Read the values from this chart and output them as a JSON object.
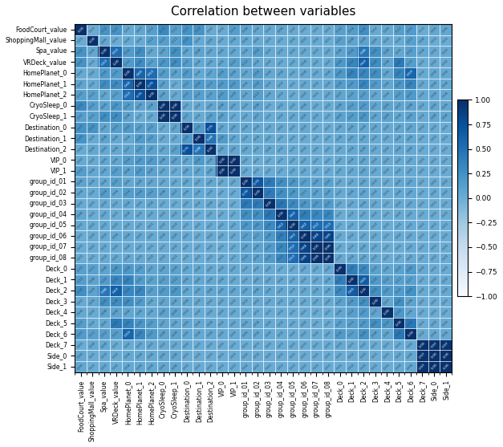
{
  "title": "Correlation between variables",
  "variables": [
    "FoodCourt_value",
    "ShoppingMall_value",
    "Spa_value",
    "VRDeck_value",
    "HomePlanet_0",
    "HomePlanet_1",
    "HomePlanet_2",
    "CryoSleep_0",
    "CryoSleep_1",
    "Destination_0",
    "Destination_1",
    "Destination_2",
    "VIP_0",
    "VIP_1",
    "group_id_01",
    "group_id_02",
    "group_id_03",
    "group_id_04",
    "group_id_05",
    "group_id_06",
    "group_id_07",
    "group_id_08",
    "Deck_0",
    "Deck_1",
    "Deck_2",
    "Deck_3",
    "Deck_4",
    "Deck_5",
    "Deck_6",
    "Deck_7",
    "Side_0",
    "Side_1"
  ],
  "corr_matrix": [
    [
      1.0,
      0.01,
      0.22,
      0.22,
      0.03,
      0.07,
      0.12,
      0.31,
      0.12,
      0.23,
      0.23,
      0.02,
      0.02,
      0.13,
      0.08,
      0.04,
      0.02,
      0.06,
      0.02,
      0.01,
      0.01,
      0.01,
      0.12,
      0.14,
      0.26,
      0.02,
      0.04,
      0.13,
      0.15,
      0.01,
      0.05,
      0.05
    ],
    [
      0.01,
      1.0,
      0.05,
      0.01,
      0.02,
      0.02,
      0.11,
      0.13,
      0.11,
      0.23,
      0.03,
      0.05,
      0.02,
      0.04,
      0.04,
      0.02,
      0.01,
      0.01,
      0.02,
      0.03,
      0.02,
      0.01,
      0.11,
      0.08,
      0.09,
      0.05,
      0.02,
      0.02,
      0.11,
      0.04,
      0.01,
      0.01
    ],
    [
      0.22,
      0.05,
      1.0,
      0.53,
      0.16,
      0.27,
      0.05,
      0.09,
      0.25,
      0.06,
      0.08,
      0.05,
      0.05,
      0.05,
      0.04,
      0.14,
      0.03,
      0.03,
      0.03,
      0.03,
      0.02,
      0.02,
      0.08,
      0.16,
      0.46,
      0.25,
      0.08,
      0.05,
      0.12,
      0.04,
      0.03,
      0.03
    ],
    [
      0.22,
      0.01,
      0.53,
      1.0,
      0.15,
      0.28,
      0.11,
      0.19,
      0.26,
      0.13,
      0.04,
      0.04,
      0.05,
      0.12,
      0.12,
      0.04,
      0.02,
      0.01,
      0.02,
      0.04,
      0.02,
      0.02,
      0.18,
      0.33,
      0.63,
      0.28,
      0.08,
      0.42,
      0.13,
      0.01,
      0.02,
      0.02
    ],
    [
      0.03,
      0.02,
      0.16,
      0.15,
      1.0,
      0.6,
      0.53,
      0.14,
      0.08,
      0.15,
      0.04,
      0.07,
      0.14,
      0.08,
      0.05,
      0.14,
      0.04,
      0.04,
      0.02,
      0.04,
      0.02,
      0.04,
      0.18,
      0.35,
      0.33,
      0.26,
      0.06,
      0.35,
      0.59,
      0.02,
      0.04,
      0.04
    ],
    [
      0.07,
      0.02,
      0.27,
      0.28,
      0.6,
      1.0,
      0.75,
      0.09,
      0.01,
      0.11,
      0.16,
      0.13,
      0.15,
      0.15,
      0.06,
      0.14,
      0.03,
      0.02,
      0.01,
      0.03,
      0.02,
      0.03,
      0.14,
      0.15,
      0.33,
      0.15,
      0.06,
      0.19,
      0.33,
      0.03,
      0.04,
      0.04
    ],
    [
      0.12,
      0.11,
      0.05,
      0.11,
      0.53,
      0.75,
      1.0,
      0.08,
      0.02,
      0.12,
      0.12,
      0.1,
      0.15,
      0.09,
      0.05,
      0.12,
      0.04,
      0.02,
      0.01,
      0.03,
      0.01,
      0.03,
      0.07,
      0.1,
      0.12,
      0.04,
      0.04,
      0.13,
      0.17,
      0.03,
      0.04,
      0.04
    ],
    [
      0.31,
      0.13,
      0.09,
      0.19,
      0.14,
      0.09,
      0.08,
      1.0,
      1.0,
      0.03,
      0.02,
      0.05,
      0.08,
      0.05,
      0.03,
      0.08,
      0.01,
      0.02,
      0.02,
      0.04,
      0.01,
      0.02,
      0.08,
      0.12,
      0.15,
      0.07,
      0.09,
      0.07,
      0.08,
      0.02,
      0.05,
      0.05
    ],
    [
      0.12,
      0.11,
      0.25,
      0.26,
      0.08,
      0.01,
      0.02,
      1.0,
      1.0,
      0.07,
      0.02,
      0.1,
      0.09,
      0.01,
      0.02,
      0.07,
      0.01,
      0.02,
      0.03,
      0.05,
      0.02,
      0.01,
      0.09,
      0.13,
      0.19,
      0.06,
      0.09,
      0.04,
      0.09,
      0.02,
      0.06,
      0.06
    ],
    [
      0.23,
      0.23,
      0.06,
      0.13,
      0.15,
      0.11,
      0.12,
      0.03,
      0.07,
      1.0,
      0.16,
      0.75,
      0.05,
      0.06,
      0.04,
      0.04,
      0.03,
      0.02,
      0.01,
      0.03,
      0.01,
      0.01,
      0.04,
      0.06,
      0.04,
      0.04,
      0.03,
      0.05,
      0.05,
      0.02,
      0.01,
      0.01
    ],
    [
      0.23,
      0.03,
      0.08,
      0.04,
      0.04,
      0.16,
      0.12,
      0.02,
      0.02,
      0.16,
      1.0,
      0.48,
      0.16,
      0.05,
      0.03,
      0.04,
      0.02,
      0.01,
      0.01,
      0.01,
      0.01,
      0.01,
      0.04,
      0.05,
      0.05,
      0.03,
      0.02,
      0.04,
      0.04,
      0.01,
      0.01,
      0.01
    ],
    [
      0.02,
      0.05,
      0.05,
      0.04,
      0.07,
      0.13,
      0.1,
      0.05,
      0.1,
      0.75,
      0.48,
      1.0,
      0.06,
      0.06,
      0.04,
      0.03,
      0.04,
      0.02,
      0.01,
      0.02,
      0.01,
      0.01,
      0.03,
      0.04,
      0.06,
      0.02,
      0.02,
      0.04,
      0.04,
      0.01,
      0.01,
      0.01
    ],
    [
      0.02,
      0.02,
      0.05,
      0.05,
      0.14,
      0.15,
      0.15,
      0.08,
      0.09,
      0.05,
      0.16,
      0.06,
      1.0,
      1.0,
      0.02,
      0.01,
      0.01,
      0.01,
      0.02,
      0.02,
      0.01,
      0.01,
      0.03,
      0.04,
      0.05,
      0.03,
      0.03,
      0.02,
      0.03,
      0.01,
      0.01,
      0.01
    ],
    [
      0.13,
      0.04,
      0.05,
      0.12,
      0.08,
      0.15,
      0.09,
      0.05,
      0.01,
      0.06,
      0.05,
      0.06,
      1.0,
      1.0,
      0.02,
      0.01,
      0.01,
      0.01,
      0.02,
      0.02,
      0.01,
      0.01,
      0.03,
      0.03,
      0.05,
      0.02,
      0.02,
      0.02,
      0.03,
      0.01,
      0.01,
      0.01
    ],
    [
      0.08,
      0.04,
      0.04,
      0.12,
      0.05,
      0.06,
      0.05,
      0.03,
      0.02,
      0.04,
      0.03,
      0.04,
      0.02,
      0.02,
      1.0,
      0.7,
      0.42,
      0.26,
      0.18,
      0.11,
      0.09,
      0.1,
      0.02,
      0.02,
      0.05,
      0.03,
      0.01,
      0.05,
      0.05,
      0.01,
      0.02,
      0.02
    ],
    [
      0.04,
      0.02,
      0.14,
      0.04,
      0.14,
      0.14,
      0.12,
      0.08,
      0.07,
      0.04,
      0.04,
      0.03,
      0.01,
      0.01,
      0.7,
      1.0,
      0.41,
      0.26,
      0.18,
      0.11,
      0.09,
      0.09,
      0.02,
      0.05,
      0.06,
      0.03,
      0.01,
      0.04,
      0.04,
      0.01,
      0.02,
      0.02
    ],
    [
      0.02,
      0.01,
      0.03,
      0.02,
      0.04,
      0.03,
      0.04,
      0.01,
      0.01,
      0.03,
      0.02,
      0.04,
      0.01,
      0.01,
      0.42,
      0.41,
      1.0,
      0.44,
      0.3,
      0.18,
      0.15,
      0.15,
      0.02,
      0.03,
      0.04,
      0.03,
      0.01,
      0.03,
      0.03,
      0.01,
      0.01,
      0.01
    ],
    [
      0.06,
      0.01,
      0.03,
      0.01,
      0.04,
      0.02,
      0.02,
      0.02,
      0.02,
      0.02,
      0.01,
      0.02,
      0.01,
      0.01,
      0.26,
      0.26,
      0.44,
      1.0,
      0.62,
      0.38,
      0.32,
      0.32,
      0.01,
      0.02,
      0.03,
      0.02,
      0.01,
      0.02,
      0.02,
      0.01,
      0.01,
      0.01
    ],
    [
      0.02,
      0.02,
      0.03,
      0.02,
      0.02,
      0.01,
      0.01,
      0.02,
      0.03,
      0.01,
      0.01,
      0.01,
      0.02,
      0.02,
      0.18,
      0.18,
      0.3,
      0.62,
      1.0,
      0.62,
      0.52,
      0.53,
      0.01,
      0.02,
      0.03,
      0.02,
      0.01,
      0.01,
      0.02,
      0.01,
      0.01,
      0.01
    ],
    [
      0.01,
      0.03,
      0.03,
      0.04,
      0.04,
      0.03,
      0.03,
      0.04,
      0.05,
      0.03,
      0.01,
      0.02,
      0.02,
      0.02,
      0.11,
      0.11,
      0.18,
      0.38,
      0.62,
      1.0,
      0.84,
      0.85,
      0.02,
      0.02,
      0.03,
      0.02,
      0.01,
      0.02,
      0.02,
      0.01,
      0.01,
      0.01
    ],
    [
      0.01,
      0.02,
      0.02,
      0.02,
      0.02,
      0.02,
      0.01,
      0.01,
      0.02,
      0.01,
      0.01,
      0.01,
      0.01,
      0.01,
      0.09,
      0.09,
      0.15,
      0.32,
      0.52,
      0.84,
      1.0,
      0.99,
      0.02,
      0.03,
      0.04,
      0.03,
      0.01,
      0.01,
      0.02,
      0.01,
      0.01,
      0.01
    ],
    [
      0.01,
      0.01,
      0.02,
      0.02,
      0.04,
      0.03,
      0.03,
      0.02,
      0.01,
      0.01,
      0.01,
      0.01,
      0.01,
      0.01,
      0.1,
      0.09,
      0.15,
      0.32,
      0.53,
      0.85,
      0.99,
      1.0,
      0.03,
      0.04,
      0.04,
      0.03,
      0.01,
      0.01,
      0.02,
      0.01,
      0.01,
      0.01
    ],
    [
      0.12,
      0.11,
      0.08,
      0.18,
      0.18,
      0.14,
      0.07,
      0.08,
      0.09,
      0.04,
      0.04,
      0.03,
      0.03,
      0.03,
      0.02,
      0.02,
      0.02,
      0.01,
      0.01,
      0.02,
      0.02,
      0.03,
      1.0,
      0.39,
      0.3,
      0.1,
      0.06,
      0.1,
      0.16,
      0.03,
      0.01,
      0.01
    ],
    [
      0.14,
      0.08,
      0.16,
      0.33,
      0.35,
      0.15,
      0.1,
      0.12,
      0.13,
      0.06,
      0.05,
      0.04,
      0.04,
      0.03,
      0.02,
      0.05,
      0.03,
      0.02,
      0.02,
      0.02,
      0.03,
      0.04,
      0.39,
      1.0,
      0.65,
      0.16,
      0.12,
      0.11,
      0.11,
      0.01,
      0.02,
      0.02
    ],
    [
      0.26,
      0.09,
      0.46,
      0.63,
      0.33,
      0.33,
      0.12,
      0.15,
      0.19,
      0.04,
      0.05,
      0.06,
      0.05,
      0.05,
      0.05,
      0.06,
      0.04,
      0.03,
      0.03,
      0.03,
      0.04,
      0.04,
      0.3,
      0.65,
      1.0,
      0.25,
      0.15,
      0.15,
      0.24,
      0.02,
      0.03,
      0.03
    ],
    [
      0.02,
      0.05,
      0.25,
      0.28,
      0.26,
      0.15,
      0.04,
      0.07,
      0.06,
      0.04,
      0.03,
      0.02,
      0.03,
      0.02,
      0.03,
      0.03,
      0.03,
      0.02,
      0.02,
      0.02,
      0.03,
      0.03,
      0.1,
      0.16,
      0.25,
      1.0,
      0.07,
      0.25,
      0.08,
      0.01,
      0.01,
      0.01
    ],
    [
      0.04,
      0.02,
      0.08,
      0.08,
      0.06,
      0.06,
      0.04,
      0.09,
      0.09,
      0.03,
      0.02,
      0.02,
      0.03,
      0.02,
      0.01,
      0.01,
      0.01,
      0.01,
      0.01,
      0.01,
      0.01,
      0.01,
      0.06,
      0.12,
      0.15,
      0.07,
      1.0,
      0.19,
      0.06,
      0.01,
      0.01,
      0.01
    ],
    [
      0.13,
      0.02,
      0.05,
      0.42,
      0.35,
      0.19,
      0.13,
      0.07,
      0.04,
      0.05,
      0.04,
      0.04,
      0.02,
      0.02,
      0.05,
      0.04,
      0.03,
      0.02,
      0.01,
      0.02,
      0.01,
      0.01,
      0.1,
      0.11,
      0.15,
      0.25,
      0.19,
      1.0,
      0.44,
      0.01,
      0.03,
      0.03
    ],
    [
      0.15,
      0.11,
      0.12,
      0.13,
      0.59,
      0.33,
      0.17,
      0.08,
      0.09,
      0.05,
      0.04,
      0.04,
      0.03,
      0.03,
      0.05,
      0.04,
      0.03,
      0.02,
      0.02,
      0.02,
      0.02,
      0.02,
      0.16,
      0.11,
      0.24,
      0.08,
      0.06,
      0.44,
      1.0,
      0.02,
      0.04,
      0.04
    ],
    [
      0.01,
      0.04,
      0.04,
      0.01,
      0.02,
      0.03,
      0.03,
      0.02,
      0.02,
      0.02,
      0.01,
      0.01,
      0.01,
      0.01,
      0.01,
      0.01,
      0.01,
      0.01,
      0.01,
      0.01,
      0.01,
      0.01,
      0.03,
      0.01,
      0.02,
      0.01,
      0.01,
      0.01,
      0.02,
      1.0,
      0.97,
      0.97
    ],
    [
      0.05,
      0.01,
      0.03,
      0.02,
      0.04,
      0.04,
      0.04,
      0.05,
      0.06,
      0.01,
      0.01,
      0.01,
      0.01,
      0.01,
      0.02,
      0.02,
      0.01,
      0.01,
      0.01,
      0.01,
      0.01,
      0.01,
      0.01,
      0.02,
      0.03,
      0.01,
      0.01,
      0.03,
      0.04,
      0.97,
      1.0,
      1.0
    ],
    [
      0.05,
      0.01,
      0.03,
      0.02,
      0.04,
      0.04,
      0.04,
      0.05,
      0.06,
      0.01,
      0.01,
      0.01,
      0.01,
      0.01,
      0.02,
      0.02,
      0.01,
      0.01,
      0.01,
      0.01,
      0.01,
      0.01,
      0.01,
      0.02,
      0.03,
      0.01,
      0.01,
      0.03,
      0.04,
      0.97,
      1.0,
      1.0
    ]
  ],
  "cmap": "Blues",
  "vmin": -1.0,
  "vmax": 1.0,
  "colorbar_ticks": [
    1.0,
    0.75,
    0.5,
    0.25,
    0.0,
    -0.25,
    -0.5,
    -0.75,
    -1.0
  ],
  "title_fontsize": 11,
  "annot_fontsize": 3.2,
  "annot_rotation": 45,
  "label_fontsize": 5.5,
  "fig_width": 6.27,
  "fig_height": 5.57,
  "dpi": 100
}
